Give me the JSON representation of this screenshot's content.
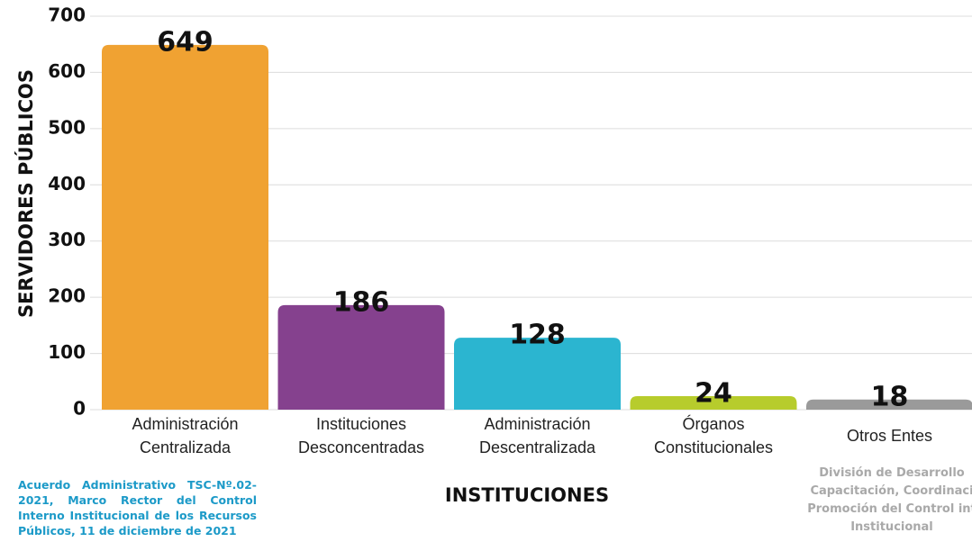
{
  "chart_data": {
    "type": "bar",
    "categories": [
      "Administración Centralizada",
      "Instituciones Desconcentradas",
      "Administración Descentralizada",
      "Órganos Constitucionales",
      "Otros Entes"
    ],
    "values": [
      649,
      186,
      128,
      24,
      18
    ],
    "colors": [
      "#f0a232",
      "#85418e",
      "#2bb5d0",
      "#b7cc2c",
      "#9a9a9a"
    ],
    "ylim": [
      0,
      700
    ],
    "yticks": [
      0,
      100,
      200,
      300,
      400,
      500,
      600,
      700
    ],
    "grid": true,
    "y_label": "SERVIDORES PÚBLICOS",
    "x_label": "INSTITUCIONES",
    "note_left": "Acuerdo Administrativo TSC-Nº.02-2021, Marco Rector del Control Interno Institucional de los Recursos Públicos, 11 de diciembre de 2021",
    "note_right": [
      "División de Desarrollo",
      "Capacitación, Coordinaci",
      "Promoción del Control int",
      "Institucional"
    ]
  }
}
